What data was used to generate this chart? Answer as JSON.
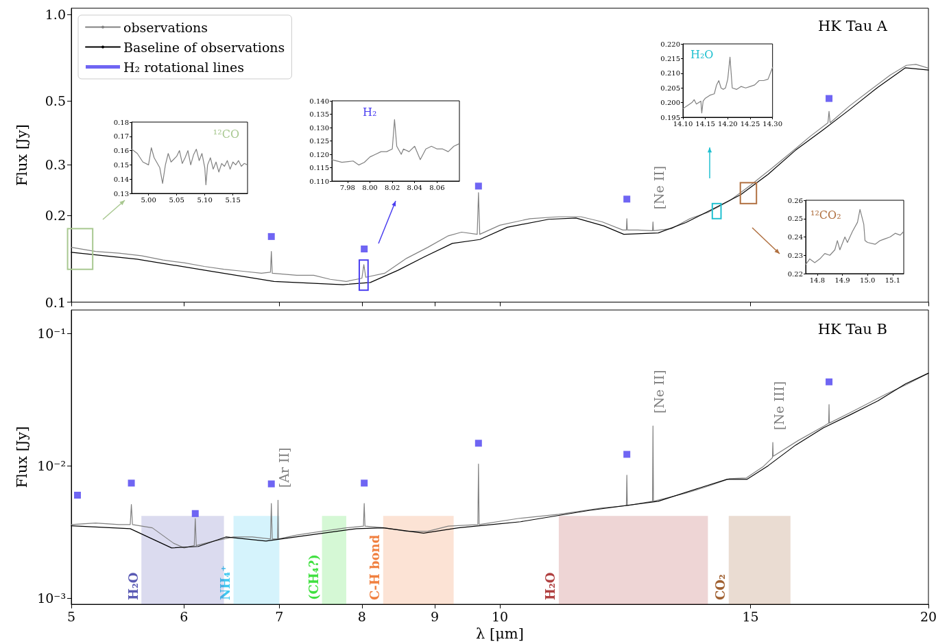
{
  "chart_data": [
    {
      "type": "line",
      "title": "HK Tau A",
      "ylabel": "Flux [Jy]",
      "log": "xy",
      "xlim": [
        5,
        20
      ],
      "ylim": [
        0.1,
        1.05
      ],
      "xticks": [
        5,
        6,
        7,
        8,
        9,
        10,
        15,
        20
      ],
      "yticks": [
        0.1,
        0.2,
        0.3,
        0.5,
        {
          "value": 1,
          "label": "1.0"
        }
      ],
      "tick_labels": "y",
      "legend": "top left",
      "grid": false,
      "series": [
        {
          "name": "observations",
          "color": "#808080",
          "x": [
            5.0,
            5.2,
            5.4,
            5.6,
            5.8,
            6.0,
            6.2,
            6.4,
            6.6,
            6.8,
            6.9,
            6.91,
            6.92,
            7.2,
            7.4,
            7.6,
            7.8,
            8.0,
            8.025,
            8.05,
            8.3,
            8.6,
            8.9,
            9.2,
            9.4,
            9.64,
            9.66,
            9.68,
            10.0,
            10.5,
            11.0,
            11.4,
            11.8,
            12.2,
            12.27,
            12.28,
            12.29,
            12.5,
            12.8,
            12.81,
            12.82,
            13.2,
            13.6,
            14.0,
            14.5,
            15.0,
            15.5,
            16.0,
            16.5,
            17.0,
            17.03,
            17.06,
            17.6,
            18.2,
            18.8,
            19.3,
            19.6,
            20
          ],
          "values": [
            0.155,
            0.15,
            0.148,
            0.145,
            0.14,
            0.137,
            0.133,
            0.13,
            0.128,
            0.126,
            0.127,
            0.15,
            0.126,
            0.124,
            0.124,
            0.12,
            0.118,
            0.121,
            0.135,
            0.122,
            0.126,
            0.142,
            0.155,
            0.17,
            0.175,
            0.172,
            0.24,
            0.172,
            0.185,
            0.195,
            0.198,
            0.198,
            0.19,
            0.178,
            0.178,
            0.195,
            0.178,
            0.178,
            0.177,
            0.19,
            0.177,
            0.18,
            0.195,
            0.205,
            0.225,
            0.255,
            0.29,
            0.33,
            0.375,
            0.42,
            0.46,
            0.42,
            0.48,
            0.545,
            0.615,
            0.665,
            0.67,
            0.65
          ]
        },
        {
          "name": "Baseline of observations",
          "color": "#000000",
          "x": [
            5.0,
            5.56,
            6.21,
            6.94,
            7.76,
            8.11,
            8.48,
            8.86,
            9.26,
            9.68,
            10.12,
            10.82,
            11.31,
            11.83,
            12.22,
            12.92,
            13.51,
            14.12,
            14.76,
            15.43,
            16.13,
            16.87,
            17.63,
            18.43,
            19.27,
            20
          ],
          "values": [
            0.149,
            0.141,
            0.129,
            0.118,
            0.115,
            0.117,
            0.129,
            0.144,
            0.16,
            0.165,
            0.182,
            0.194,
            0.196,
            0.184,
            0.172,
            0.174,
            0.189,
            0.211,
            0.236,
            0.278,
            0.337,
            0.397,
            0.469,
            0.558,
            0.652,
            0.64
          ]
        },
        {
          "name": "H₂ rotational lines",
          "type": "scatter",
          "marker": "square",
          "color": "#4b3ff0",
          "x": [
            6.91,
            8.03,
            9.66,
            12.28,
            17.03
          ],
          "values": [
            0.169,
            0.153,
            0.253,
            0.228,
            0.51
          ]
        }
      ],
      "annotations": [
        {
          "text": "[Ne II]",
          "x": 12.81,
          "y": 0.19
        }
      ]
    },
    {
      "type": "line",
      "title": "¹²CO",
      "xlim": [
        4.97,
        5.176
      ],
      "ylim": [
        0.13,
        0.18
      ],
      "xticks": [
        {
          "value": 5,
          "label": "5.00"
        },
        5.05,
        {
          "value": 5.1,
          "label": "5.10"
        },
        5.15
      ],
      "yticks": [
        0.13,
        0.14,
        0.15,
        0.16,
        0.17,
        0.18
      ],
      "grid": false,
      "series": [
        {
          "color": "#808080",
          "x": [
            4.97,
            4.98,
            4.99,
            5.0,
            5.005,
            5.01,
            5.02,
            5.025,
            5.03,
            5.035,
            5.04,
            5.05,
            5.055,
            5.06,
            5.065,
            5.07,
            5.075,
            5.08,
            5.085,
            5.09,
            5.095,
            5.1,
            5.102,
            5.105,
            5.11,
            5.115,
            5.12,
            5.125,
            5.13,
            5.135,
            5.14,
            5.145,
            5.15,
            5.155,
            5.16,
            5.165,
            5.17,
            5.176
          ],
          "values": [
            0.161,
            0.158,
            0.152,
            0.15,
            0.162,
            0.155,
            0.148,
            0.137,
            0.15,
            0.158,
            0.152,
            0.156,
            0.16,
            0.151,
            0.155,
            0.16,
            0.15,
            0.157,
            0.161,
            0.153,
            0.158,
            0.148,
            0.136,
            0.15,
            0.155,
            0.147,
            0.152,
            0.145,
            0.151,
            0.149,
            0.153,
            0.147,
            0.152,
            0.15,
            0.153,
            0.149,
            0.151,
            0.15
          ]
        }
      ]
    },
    {
      "type": "line",
      "title": "H₂",
      "xlim": [
        7.966,
        8.08
      ],
      "ylim": [
        0.11,
        0.14
      ],
      "xticks": [
        7.98,
        {
          "value": 8,
          "label": "8.00"
        },
        8.02,
        8.04,
        8.06
      ],
      "yticks": [
        {
          "value": 0.11,
          "label": "0.110"
        },
        0.115,
        {
          "value": 0.12,
          "label": "0.120"
        },
        0.125,
        {
          "value": 0.13,
          "label": "0.130"
        },
        0.135,
        {
          "value": 0.14,
          "label": "0.140"
        }
      ],
      "grid": false,
      "series": [
        {
          "color": "#808080",
          "x": [
            7.966,
            7.975,
            7.985,
            7.99,
            7.995,
            8.0,
            8.005,
            8.01,
            8.015,
            8.02,
            8.022,
            8.024,
            8.028,
            8.03,
            8.035,
            8.04,
            8.045,
            8.05,
            8.055,
            8.06,
            8.065,
            8.07,
            8.075,
            8.08
          ],
          "values": [
            0.118,
            0.117,
            0.1175,
            0.116,
            0.117,
            0.119,
            0.12,
            0.121,
            0.121,
            0.122,
            0.133,
            0.123,
            0.12,
            0.122,
            0.121,
            0.123,
            0.118,
            0.122,
            0.123,
            0.122,
            0.122,
            0.121,
            0.123,
            0.124
          ]
        }
      ]
    },
    {
      "type": "line",
      "title": "H₂O",
      "xlim": [
        14.1,
        14.3
      ],
      "ylim": [
        0.195,
        0.22
      ],
      "xticks": [
        {
          "value": 14.1,
          "label": "14.10"
        },
        14.15,
        {
          "value": 14.2,
          "label": "14.20"
        },
        14.25,
        {
          "value": 14.3,
          "label": "14.30"
        }
      ],
      "yticks": [
        0.195,
        {
          "value": 0.2,
          "label": "0.200"
        },
        0.205,
        {
          "value": 0.21,
          "label": "0.210"
        },
        0.215,
        {
          "value": 0.22,
          "label": "0.220"
        }
      ],
      "grid": false,
      "series": [
        {
          "color": "#808080",
          "x": [
            14.1,
            14.11,
            14.12,
            14.125,
            14.13,
            14.14,
            14.142,
            14.145,
            14.15,
            14.16,
            14.17,
            14.175,
            14.18,
            14.185,
            14.19,
            14.195,
            14.2,
            14.205,
            14.21,
            14.22,
            14.23,
            14.24,
            14.25,
            14.26,
            14.27,
            14.28,
            14.29,
            14.3
          ],
          "values": [
            0.198,
            0.199,
            0.2,
            0.201,
            0.1995,
            0.2005,
            0.1965,
            0.2005,
            0.2015,
            0.2025,
            0.203,
            0.206,
            0.2075,
            0.205,
            0.2045,
            0.205,
            0.208,
            0.2155,
            0.205,
            0.2045,
            0.2055,
            0.205,
            0.2055,
            0.206,
            0.2075,
            0.2075,
            0.208,
            0.212
          ]
        }
      ]
    },
    {
      "type": "line",
      "title": "¹²CO₂",
      "xlim": [
        14.754,
        15.144
      ],
      "ylim": [
        0.22,
        0.26
      ],
      "xticks": [
        14.8,
        14.9,
        {
          "value": 15,
          "label": "15.0"
        },
        15.1
      ],
      "yticks": [
        0.22,
        0.23,
        0.24,
        0.25,
        0.26
      ],
      "grid": false,
      "series": [
        {
          "color": "#808080",
          "x": [
            14.754,
            14.77,
            14.79,
            14.81,
            14.83,
            14.85,
            14.87,
            14.88,
            14.89,
            14.91,
            14.92,
            14.94,
            14.96,
            14.97,
            14.985,
            14.99,
            15.0,
            15.03,
            15.05,
            15.07,
            15.09,
            15.11,
            15.13,
            15.144
          ],
          "values": [
            0.225,
            0.228,
            0.226,
            0.228,
            0.231,
            0.23,
            0.233,
            0.238,
            0.233,
            0.24,
            0.237,
            0.243,
            0.248,
            0.255,
            0.247,
            0.238,
            0.237,
            0.236,
            0.238,
            0.239,
            0.24,
            0.242,
            0.241,
            0.243
          ]
        }
      ]
    },
    {
      "type": "line",
      "title": "HK Tau B",
      "xlabel": "λ [μm]",
      "ylabel": "Flux [Jy]",
      "log": "xy",
      "xlim": [
        5,
        20
      ],
      "ylim": [
        0.0009,
        0.15
      ],
      "xticks": [
        5,
        6,
        7,
        8,
        9,
        10,
        15,
        20
      ],
      "yticks": [
        {
          "value": 0.001,
          "label": "10⁻³"
        },
        {
          "value": 0.01,
          "label": "10⁻²"
        },
        {
          "value": 0.1,
          "label": "10⁻¹"
        }
      ],
      "grid": false,
      "series": [
        {
          "color": "#808080",
          "x": [
            5.0,
            5.2,
            5.4,
            5.5,
            5.51,
            5.52,
            5.7,
            5.9,
            6.0,
            6.1,
            6.11,
            6.12,
            6.3,
            6.5,
            6.7,
            6.9,
            6.91,
            6.92,
            6.98,
            6.985,
            6.99,
            7.2,
            7.5,
            7.8,
            8.02,
            8.03,
            8.04,
            8.3,
            8.6,
            8.9,
            9.2,
            9.65,
            9.66,
            9.67,
            10.3,
            11.0,
            11.8,
            12.27,
            12.28,
            12.29,
            12.8,
            12.81,
            12.82,
            13.5,
            14.0,
            14.5,
            14.9,
            15.3,
            15.54,
            15.55,
            15.56,
            16.2,
            16.9,
            17.02,
            17.03,
            17.04,
            17.6,
            18.4,
            18.7,
            19.3,
            20
          ],
          "values": [
            0.0036,
            0.0037,
            0.0036,
            0.0036,
            0.0051,
            0.0036,
            0.0034,
            0.0026,
            0.0024,
            0.0025,
            0.004,
            0.0025,
            0.0027,
            0.0029,
            0.0029,
            0.0028,
            0.0052,
            0.0028,
            0.0028,
            0.0055,
            0.0028,
            0.003,
            0.0032,
            0.0034,
            0.0035,
            0.0052,
            0.0035,
            0.0034,
            0.0032,
            0.0032,
            0.0035,
            0.0036,
            0.0103,
            0.0036,
            0.004,
            0.0043,
            0.0048,
            0.005,
            0.0085,
            0.005,
            0.0054,
            0.02,
            0.0054,
            0.0062,
            0.007,
            0.008,
            0.0081,
            0.0098,
            0.0115,
            0.015,
            0.0118,
            0.0155,
            0.02,
            0.021,
            0.029,
            0.021,
            0.025,
            0.032,
            0.035,
            0.041,
            0.05
          ]
        },
        {
          "color": "#000000",
          "x": [
            5.0,
            5.5,
            5.88,
            6.14,
            6.42,
            6.85,
            7.35,
            7.93,
            8.28,
            8.84,
            9.35,
            10.34,
            11.55,
            12.92,
            13.81,
            14.44,
            14.91,
            15.43,
            16.13,
            16.87,
            17.63,
            18.43,
            19.27,
            20
          ],
          "values": [
            0.00352,
            0.00335,
            0.0024,
            0.00246,
            0.0029,
            0.0027,
            0.003,
            0.00335,
            0.0034,
            0.0031,
            0.0034,
            0.00378,
            0.0046,
            0.0054,
            0.0068,
            0.0079,
            0.0079,
            0.01,
            0.0143,
            0.0193,
            0.0243,
            0.0309,
            0.0415,
            0.05
          ]
        },
        {
          "type": "scatter",
          "marker": "square",
          "color": "#4b3ff0",
          "x": [
            5.05,
            5.51,
            6.11,
            6.91,
            8.03,
            9.66,
            12.28,
            17.03
          ],
          "values": [
            0.006,
            0.0074,
            0.00436,
            0.0073,
            0.0074,
            0.0148,
            0.0122,
            0.043
          ]
        }
      ],
      "bands": [
        {
          "axis": "x",
          "from": 5.6,
          "to": 6.4,
          "label": "H₂O",
          "color": "#5a5ab4"
        },
        {
          "axis": "x",
          "from": 6.5,
          "to": 7.0,
          "label": "NH₄⁺",
          "color": "#40c8f0"
        },
        {
          "axis": "x",
          "from": 7.5,
          "to": 7.8,
          "label": "(CH₄?)",
          "color": "#40e040"
        },
        {
          "axis": "x",
          "from": 8.28,
          "to": 9.28,
          "label": "C-H bond",
          "color": "#f08040"
        },
        {
          "axis": "x",
          "from": 11.0,
          "to": 14.0,
          "label": "H₂O",
          "color": "#b04040"
        },
        {
          "axis": "x",
          "from": 14.48,
          "to": 16.0,
          "label": "CO₂",
          "color": "#a06030"
        }
      ],
      "annotations": [
        {
          "text": "[Ar II]",
          "x": 6.985,
          "y": 0.0055
        },
        {
          "text": "[Ne II]",
          "x": 12.81,
          "y": 0.02
        },
        {
          "text": "[Ne III]",
          "x": 15.55,
          "y": 0.015
        }
      ]
    }
  ]
}
